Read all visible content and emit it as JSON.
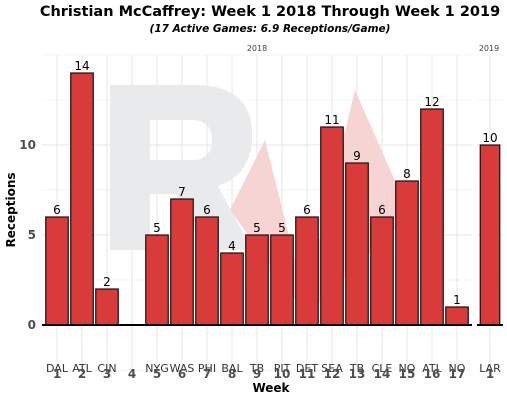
{
  "chart_data": {
    "type": "bar",
    "title": "Christian McCaffrey: Week 1 2018 Through Week 1 2019",
    "subtitle": "(17 Active Games: 6.9 Receptions/Game)",
    "xlabel": "Week",
    "ylabel": "Receptions",
    "ylim": [
      -2.5,
      15
    ],
    "yticks": [
      0,
      5,
      10
    ],
    "grid": true,
    "watermark": "RW",
    "seasons": [
      {
        "label": "2018",
        "weeks": [
          "1",
          "2",
          "3",
          "4",
          "5",
          "6",
          "7",
          "8",
          "9",
          "10",
          "11",
          "12",
          "13",
          "14",
          "15",
          "16",
          "17"
        ],
        "opponents": [
          "DAL",
          "ATL",
          "CIN",
          "",
          "NYG",
          "WAS",
          "PHI",
          "BAL",
          "TB",
          "PIT",
          "DET",
          "SEA",
          "TB",
          "CLE",
          "NO",
          "ATL",
          "NO"
        ],
        "values": [
          6,
          14,
          2,
          null,
          5,
          7,
          6,
          4,
          5,
          5,
          6,
          11,
          9,
          6,
          8,
          12,
          1
        ]
      },
      {
        "label": "2019",
        "weeks": [
          "1"
        ],
        "opponents": [
          "LAR"
        ],
        "values": [
          10
        ]
      }
    ],
    "colors": {
      "bar": "#d93b3b",
      "bar_outline": "#111111",
      "watermark_gray": "#e9eaec",
      "watermark_red": "#f6d4d4"
    }
  }
}
